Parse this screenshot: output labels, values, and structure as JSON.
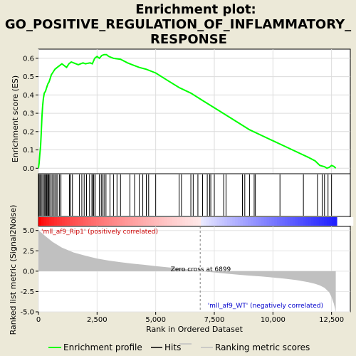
{
  "title": [
    "Enrichment plot:",
    "GO_POSITIVE_REGULATION_OF_INFLAMMATORY_",
    "RESPONSE"
  ],
  "colors": {
    "background": "#ece9d8",
    "enrichment_line": "#00ff00",
    "hits": "#000000",
    "metric_fill": "#c0c0c0",
    "positive": "#ff0000",
    "negative": "#0000ff",
    "zero_cross_line": "#808080",
    "positive_label": "#cc0000",
    "negative_label": "#0000cc"
  },
  "legend": {
    "items": [
      {
        "label": "Enrichment profile",
        "color": "#00ff00",
        "style": "line"
      },
      {
        "label": "Hits",
        "color": "#000000",
        "style": "line"
      },
      {
        "label": "Ranking metric scores",
        "color": "#c0c0c0",
        "style": "line"
      }
    ]
  },
  "chart_data": {
    "type": "line",
    "xlim": [
      0,
      13300
    ],
    "x_ticks": [
      "0",
      "2,500",
      "5,000",
      "7,500",
      "10,000",
      "12,500"
    ],
    "x_tick_values": [
      0,
      2500,
      5000,
      7500,
      10000,
      12500
    ],
    "xlabel": "Rank in Ordered Dataset",
    "enrichment": {
      "ylabel": "Enrichment score (ES)",
      "ylim": [
        -0.03,
        0.65
      ],
      "y_ticks": [
        "0.0",
        "0.1",
        "0.2",
        "0.3",
        "0.4",
        "0.5",
        "0.6"
      ],
      "y_tick_values": [
        0.0,
        0.1,
        0.2,
        0.3,
        0.4,
        0.5,
        0.6
      ],
      "grid": true,
      "series": [
        {
          "x": [
            0,
            30,
            60,
            90,
            120,
            150,
            180,
            210,
            250,
            300,
            350,
            400,
            450,
            500,
            550,
            600,
            650,
            700,
            800,
            900,
            1000,
            1200,
            1300,
            1400,
            1500,
            1700,
            1800,
            1900,
            2000,
            2200,
            2300,
            2400,
            2500,
            2600,
            2700,
            2800,
            2900,
            3000,
            3200,
            3500,
            3800,
            4000,
            4300,
            4600,
            5000,
            5500,
            6000,
            6500,
            7000,
            7500,
            8000,
            8500,
            9000,
            9500,
            10000,
            10500,
            11000,
            11500,
            11800,
            12000,
            12200,
            12300,
            12400,
            12500,
            12600,
            12680
          ],
          "y": [
            0.0,
            0.03,
            0.08,
            0.12,
            0.2,
            0.28,
            0.34,
            0.38,
            0.41,
            0.42,
            0.44,
            0.46,
            0.47,
            0.49,
            0.51,
            0.52,
            0.53,
            0.54,
            0.55,
            0.56,
            0.57,
            0.55,
            0.57,
            0.58,
            0.575,
            0.565,
            0.57,
            0.575,
            0.57,
            0.575,
            0.57,
            0.6,
            0.61,
            0.6,
            0.615,
            0.62,
            0.62,
            0.61,
            0.6,
            0.595,
            0.575,
            0.565,
            0.55,
            0.54,
            0.52,
            0.48,
            0.44,
            0.41,
            0.37,
            0.33,
            0.29,
            0.25,
            0.21,
            0.18,
            0.15,
            0.12,
            0.09,
            0.06,
            0.04,
            0.015,
            0.008,
            0.0,
            0.005,
            0.015,
            0.01,
            0.0
          ]
        }
      ]
    },
    "hits": [
      20,
      60,
      100,
      150,
      200,
      250,
      300,
      330,
      360,
      400,
      430,
      460,
      520,
      580,
      640,
      700,
      760,
      820,
      900,
      960,
      1320,
      1380,
      1450,
      1750,
      1850,
      1950,
      2050,
      2180,
      2280,
      2330,
      2360,
      2420,
      2600,
      2680,
      2740,
      2800,
      2880,
      3050,
      3200,
      3350,
      3500,
      3900,
      4100,
      4300,
      4450,
      4600,
      4700,
      5000,
      6000,
      6100,
      6500,
      6600,
      6800,
      7000,
      7200,
      7300,
      7350,
      7500,
      7900,
      8000,
      8700,
      8800,
      9000,
      9200,
      9250,
      10300,
      11300,
      11900,
      12100,
      12200,
      12350,
      12500
    ],
    "ranked_metric": {
      "ylabel": "Ranked list metric (Signal2Noise)",
      "ylim": [
        -5.0,
        5.5
      ],
      "y_ticks": [
        "-5.0",
        "-2.5",
        "0.0",
        "2.5",
        "5.0"
      ],
      "y_tick_values": [
        -5.0,
        -2.5,
        0.0,
        2.5,
        5.0
      ],
      "x": [
        0,
        100,
        300,
        600,
        1000,
        1500,
        2000,
        2500,
        3000,
        3500,
        4000,
        4500,
        5000,
        5500,
        6000,
        6500,
        6899,
        7500,
        8000,
        8500,
        9000,
        9500,
        10000,
        10500,
        11000,
        11500,
        11800,
        12000,
        12200,
        12400,
        12500,
        12600,
        12680
      ],
      "y": [
        5.0,
        4.8,
        4.3,
        3.6,
        2.9,
        2.3,
        1.9,
        1.55,
        1.3,
        1.1,
        0.93,
        0.78,
        0.62,
        0.48,
        0.33,
        0.17,
        0.0,
        -0.15,
        -0.3,
        -0.42,
        -0.55,
        -0.65,
        -0.78,
        -0.92,
        -1.1,
        -1.35,
        -1.55,
        -1.75,
        -2.05,
        -2.6,
        -3.2,
        -4.0,
        -5.0
      ]
    },
    "zero_cross": {
      "rank": 6899,
      "label": "Zero cross at 6899"
    },
    "positive_label": "'mll_af9_Rip1' (positively correlated)",
    "negative_label": "'mll_af9_WT' (negatively correlated)"
  }
}
